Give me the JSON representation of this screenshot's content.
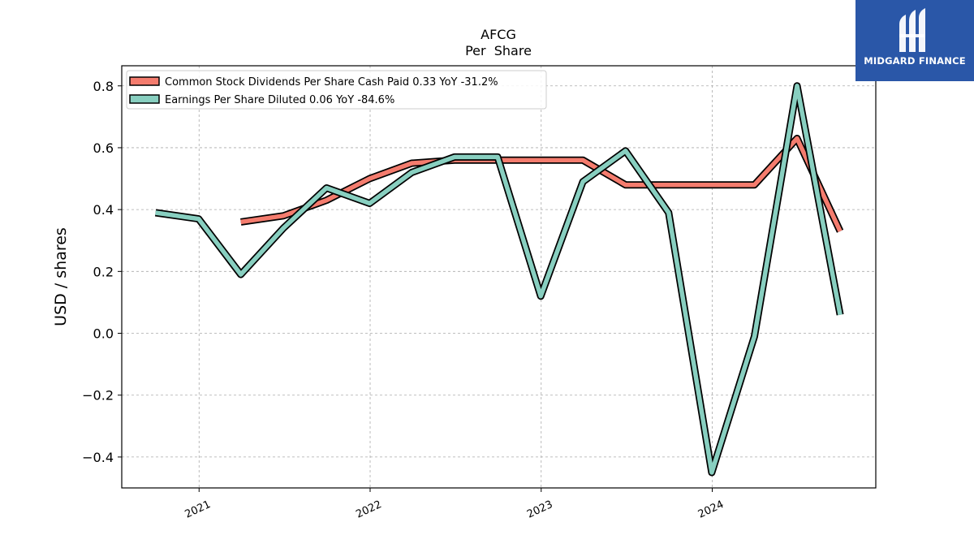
{
  "brand": {
    "name": "MIDGARD FINANCE",
    "bg_color": "#2a57a8"
  },
  "chart_data": {
    "type": "line",
    "title": "AFCG",
    "subtitle": "Per  Share",
    "xlabel": "",
    "ylabel": "USD / shares",
    "xlim": [
      "2020-07-20",
      "2024-12-15"
    ],
    "ylim": [
      -0.5,
      0.865
    ],
    "yticks": [
      -0.4,
      -0.2,
      0.0,
      0.2,
      0.4,
      0.6,
      0.8
    ],
    "ytick_labels": [
      "−0.4",
      "−0.2",
      "0.0",
      "0.2",
      "0.4",
      "0.6",
      "0.8"
    ],
    "xticks": [
      "2021-01-01",
      "2022-01-01",
      "2023-01-01",
      "2024-01-01"
    ],
    "xtick_labels": [
      "2021",
      "2022",
      "2023",
      "2024"
    ],
    "grid": true,
    "legend_position": "top-left",
    "series": [
      {
        "name": "Common Stock Dividends Per Share Cash Paid  0.33 YoY -31.2%",
        "color": "#f47c6e",
        "x": [
          "2021-03-31",
          "2021-06-30",
          "2021-09-30",
          "2021-12-31",
          "2022-03-31",
          "2022-06-30",
          "2022-09-30",
          "2022-12-31",
          "2023-03-31",
          "2023-06-30",
          "2023-09-30",
          "2023-12-31",
          "2024-03-31",
          "2024-06-30",
          "2024-09-30"
        ],
        "values": [
          0.36,
          0.38,
          0.43,
          0.5,
          0.55,
          0.56,
          0.56,
          0.56,
          0.56,
          0.48,
          0.48,
          0.48,
          0.48,
          0.63,
          0.33
        ]
      },
      {
        "name": "Earnings Per Share Diluted  0.06 YoY -84.6%",
        "color": "#88cfc0",
        "x": [
          "2020-09-30",
          "2020-12-31",
          "2021-03-31",
          "2021-06-30",
          "2021-09-30",
          "2021-12-31",
          "2022-03-31",
          "2022-06-30",
          "2022-09-30",
          "2022-12-31",
          "2023-03-31",
          "2023-06-30",
          "2023-09-30",
          "2023-12-31",
          "2024-03-31",
          "2024-06-30",
          "2024-09-30"
        ],
        "values": [
          0.39,
          0.37,
          0.19,
          0.34,
          0.47,
          0.42,
          0.52,
          0.57,
          0.57,
          0.12,
          0.49,
          0.59,
          0.39,
          -0.45,
          -0.01,
          0.8,
          0.06
        ]
      }
    ]
  }
}
